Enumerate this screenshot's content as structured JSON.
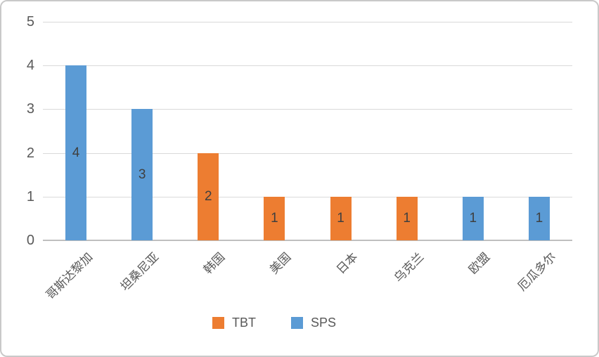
{
  "chart_data": {
    "type": "bar",
    "title": "",
    "xlabel": "",
    "ylabel": "",
    "categories": [
      "哥斯达黎加",
      "坦桑尼亚",
      "韩国",
      "美国",
      "日本",
      "乌克兰",
      "欧盟",
      "厄瓜多尔"
    ],
    "bars": [
      {
        "category": "哥斯达黎加",
        "series": "SPS",
        "value": 4,
        "label": "4"
      },
      {
        "category": "坦桑尼亚",
        "series": "SPS",
        "value": 3,
        "label": "3"
      },
      {
        "category": "韩国",
        "series": "TBT",
        "value": 2,
        "label": "2"
      },
      {
        "category": "美国",
        "series": "TBT",
        "value": 1,
        "label": "1"
      },
      {
        "category": "日本",
        "series": "TBT",
        "value": 1,
        "label": "1"
      },
      {
        "category": "乌克兰",
        "series": "TBT",
        "value": 1,
        "label": "1"
      },
      {
        "category": "欧盟",
        "series": "SPS",
        "value": 1,
        "label": "1"
      },
      {
        "category": "厄瓜多尔",
        "series": "SPS",
        "value": 1,
        "label": "1"
      }
    ],
    "series": [
      {
        "name": "TBT",
        "color": "#ED7D31",
        "values": [
          0,
          0,
          2,
          1,
          1,
          1,
          0,
          0
        ]
      },
      {
        "name": "SPS",
        "color": "#5B9BD5",
        "values": [
          4,
          3,
          0,
          0,
          0,
          0,
          1,
          1
        ]
      }
    ],
    "yticks": [
      "0",
      "1",
      "2",
      "3",
      "4",
      "5"
    ],
    "ylim": [
      0,
      5
    ],
    "grid": true,
    "data_labels": "inside-center",
    "legend_position": "bottom"
  },
  "legend": {
    "items": [
      {
        "label": "TBT",
        "color": "#ED7D31"
      },
      {
        "label": "SPS",
        "color": "#5B9BD5"
      }
    ]
  },
  "colors": {
    "background": "#FFFFFF",
    "border": "#C9C9C9",
    "gridline": "#D9D9D9",
    "axis_line": "#BFBFBF",
    "tick_text": "#595959",
    "data_label_text": "#3F3F3F"
  }
}
